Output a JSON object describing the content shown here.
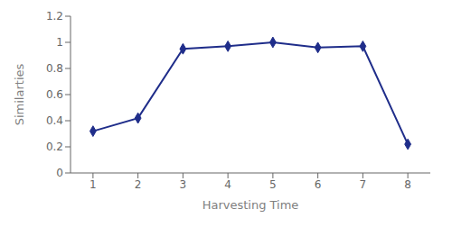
{
  "chart_data": {
    "type": "line",
    "x": [
      1,
      2,
      3,
      4,
      5,
      6,
      7,
      8
    ],
    "values": [
      0.32,
      0.42,
      0.95,
      0.97,
      1.0,
      0.96,
      0.97,
      0.22
    ],
    "xlabel": "Harvesting Time",
    "ylabel": "Similarties",
    "xlim": [
      0.5,
      8.5
    ],
    "ylim": [
      0,
      1.2
    ],
    "xticks": [
      1,
      2,
      3,
      4,
      5,
      6,
      7,
      8
    ],
    "yticks": [
      0,
      0.2,
      0.4,
      0.6,
      0.8,
      1,
      1.2
    ],
    "color": "#1f2d8a",
    "marker": "diamond",
    "grid": false
  }
}
